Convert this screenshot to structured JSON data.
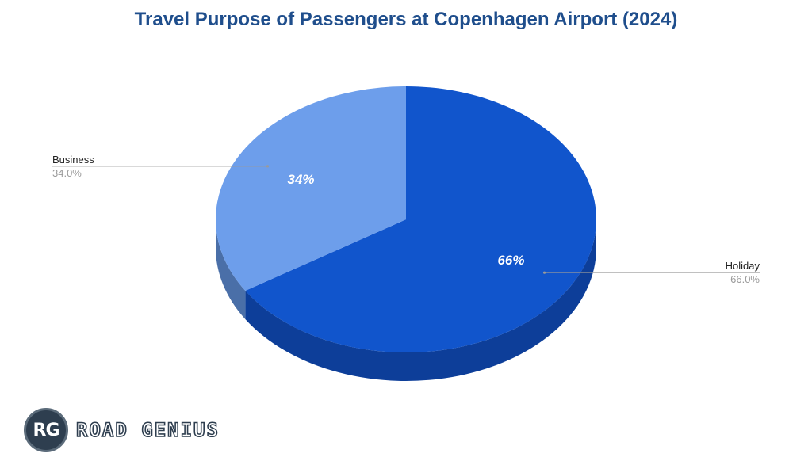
{
  "chart_data": {
    "type": "pie",
    "title": "Travel Purpose of Passengers at Copenhagen Airport (2024)",
    "style": "3d",
    "slices": [
      {
        "label": "Holiday",
        "value": 66.0,
        "display_pct": "66.0%",
        "slice_label": "66%",
        "color": "#1155cc",
        "side_color": "#0d3e99"
      },
      {
        "label": "Business",
        "value": 34.0,
        "display_pct": "34.0%",
        "slice_label": "34%",
        "color": "#6d9eeb",
        "side_color": "#4a6fa8"
      }
    ]
  },
  "branding": {
    "logo_initials": "RG",
    "logo_text": "ROAD GENIUS"
  }
}
